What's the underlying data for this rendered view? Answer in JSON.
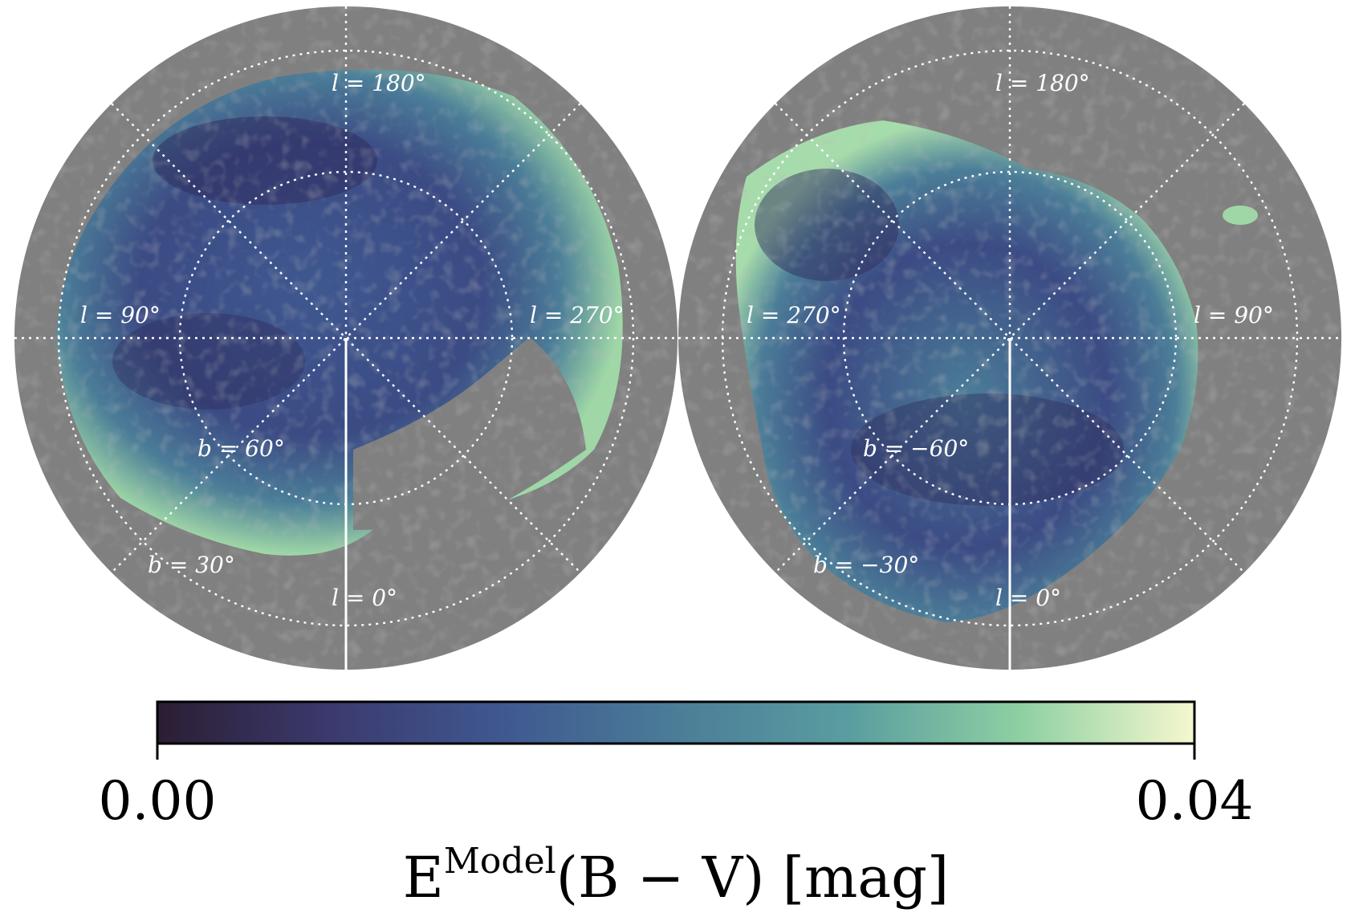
{
  "chart_data": {
    "type": "heatmap",
    "projection": "polar (zenithal) Galactic sky maps",
    "quantity": "dust reddening",
    "panels": [
      {
        "hemisphere": "north",
        "longitude_labels": [
          "l = 180°",
          "l = 90°",
          "l = 270°",
          "l = 0°"
        ],
        "latitude_labels": [
          "b = 60°",
          "b = 30°"
        ]
      },
      {
        "hemisphere": "south",
        "longitude_labels": [
          "l = 180°",
          "l = 270°",
          "l = 90°",
          "l = 0°"
        ],
        "latitude_labels": [
          "b = −60°",
          "b = −30°"
        ]
      }
    ],
    "colorbar": {
      "min": 0.0,
      "max": 0.04,
      "tick_labels": [
        "0.00",
        "0.04"
      ],
      "label_main": "E",
      "label_sup": "Model",
      "label_rest": "(B − V) [mag]",
      "colormap_stops": [
        "#2b1e33",
        "#3b3a6e",
        "#3f5890",
        "#4b7d98",
        "#5a9da0",
        "#8ed0a2",
        "#f6f7cf"
      ]
    },
    "colors": {
      "masked": "#808080",
      "background": "#ffffff"
    }
  }
}
